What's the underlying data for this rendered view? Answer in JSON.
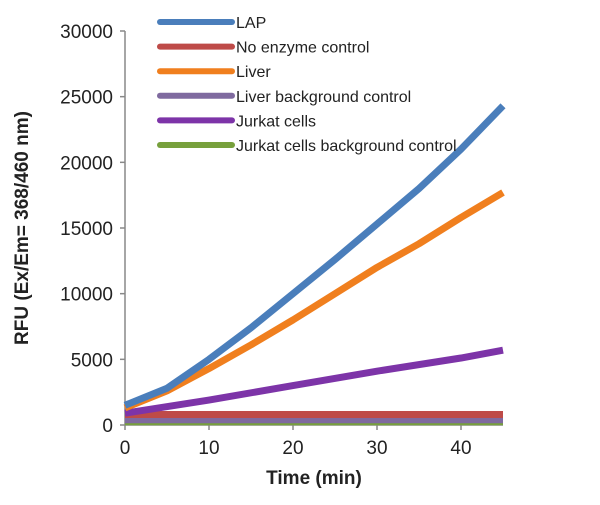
{
  "chart_data": {
    "type": "line",
    "title": "",
    "xlabel": "Time (min)",
    "ylabel": "RFU (Ex/Em= 368/460 nm)",
    "xlim": [
      0,
      45
    ],
    "ylim": [
      0,
      30000
    ],
    "xticks": [
      0,
      10,
      20,
      30,
      40
    ],
    "yticks": [
      0,
      5000,
      10000,
      15000,
      20000,
      25000,
      30000
    ],
    "grid": false,
    "legend_position": "top-left",
    "series": [
      {
        "name": "LAP",
        "color": "#4a7ebb",
        "x": [
          0,
          5,
          10,
          15,
          20,
          25,
          30,
          35,
          40,
          45
        ],
        "y": [
          1500,
          2800,
          5000,
          7400,
          10000,
          12600,
          15300,
          18000,
          21000,
          24300
        ]
      },
      {
        "name": "No enzyme control",
        "color": "#be4b48",
        "x": [
          0,
          45
        ],
        "y": [
          800,
          800
        ]
      },
      {
        "name": "Liver",
        "color": "#f07f1e",
        "x": [
          0,
          5,
          10,
          15,
          20,
          25,
          30,
          35,
          40,
          45
        ],
        "y": [
          1300,
          2600,
          4300,
          6100,
          8000,
          10000,
          12000,
          13800,
          15800,
          17700
        ]
      },
      {
        "name": "Liver background control",
        "color": "#7f6a9f",
        "x": [
          0,
          45
        ],
        "y": [
          400,
          400
        ]
      },
      {
        "name": "Jurkat cells",
        "color": "#7d34a8",
        "x": [
          0,
          10,
          20,
          30,
          40,
          45
        ],
        "y": [
          900,
          1900,
          3000,
          4100,
          5100,
          5700
        ]
      },
      {
        "name": "Jurkat cells background control",
        "color": "#77a03c",
        "x": [
          0,
          45
        ],
        "y": [
          250,
          250
        ]
      }
    ]
  }
}
